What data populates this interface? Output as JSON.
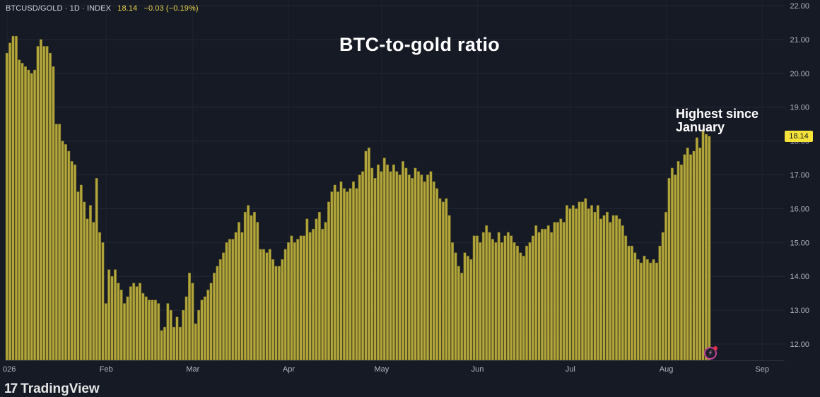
{
  "header": {
    "symbol": "BTCUSD/GOLD · 1D · INDEX",
    "last": "18.14",
    "change": "−0.03 (−0.19%)"
  },
  "price_badge": "18.14",
  "branding": {
    "logo_mark": "17",
    "logo_text": "TradingView"
  },
  "icons": {
    "logo": "tradingview-logo-icon",
    "lightning": "lightning-icon"
  },
  "colors": {
    "background": "#161a25",
    "bar_fill": "#b3a73b",
    "bar_edge": "#6f6724",
    "badge": "#f5e33a",
    "title": "#ffffff"
  },
  "chart_data": {
    "type": "bar",
    "title": "BTC-to-gold ratio",
    "annotation": "Highest since January",
    "ylim": [
      11.5,
      22.25
    ],
    "y_ticks": [
      "22.00",
      "21.00",
      "20.00",
      "19.00",
      "18.00",
      "17.00",
      "16.00",
      "15.00",
      "14.00",
      "13.00",
      "12.00"
    ],
    "x_tick_labels": [
      {
        "label": "026",
        "index": 0
      },
      {
        "label": "Feb",
        "index": 32
      },
      {
        "label": "Mar",
        "index": 60
      },
      {
        "label": "Apr",
        "index": 91
      },
      {
        "label": "May",
        "index": 121
      },
      {
        "label": "Jun",
        "index": 152
      },
      {
        "label": "Jul",
        "index": 182
      },
      {
        "label": "Aug",
        "index": 213
      },
      {
        "label": "Sep",
        "index": 244
      }
    ],
    "grid": true,
    "values": [
      20.6,
      20.9,
      21.1,
      21.1,
      20.4,
      20.3,
      20.2,
      20.1,
      20.0,
      20.1,
      20.8,
      21.0,
      20.8,
      20.8,
      20.6,
      20.2,
      18.5,
      18.5,
      18.0,
      17.9,
      17.7,
      17.4,
      17.3,
      16.5,
      16.7,
      16.2,
      15.7,
      16.1,
      15.6,
      16.9,
      15.3,
      15.0,
      13.2,
      14.2,
      14.0,
      14.2,
      13.8,
      13.6,
      13.2,
      13.4,
      13.7,
      13.8,
      13.7,
      13.8,
      13.5,
      13.4,
      13.3,
      13.3,
      13.3,
      13.2,
      12.4,
      12.5,
      13.2,
      13.0,
      12.5,
      12.8,
      12.5,
      13.0,
      13.4,
      14.1,
      13.8,
      12.6,
      13.0,
      13.3,
      13.4,
      13.6,
      13.8,
      14.1,
      14.3,
      14.5,
      14.7,
      15.0,
      15.1,
      15.1,
      15.3,
      15.6,
      15.3,
      15.9,
      16.1,
      15.8,
      15.9,
      15.6,
      14.8,
      14.8,
      14.7,
      14.8,
      14.5,
      14.3,
      14.3,
      14.5,
      14.8,
      15.0,
      15.2,
      15.0,
      15.1,
      15.2,
      15.2,
      15.7,
      15.3,
      15.4,
      15.7,
      15.9,
      15.4,
      15.6,
      16.2,
      16.5,
      16.7,
      16.5,
      16.8,
      16.6,
      16.5,
      16.6,
      16.8,
      16.6,
      17.0,
      17.1,
      17.7,
      17.8,
      17.2,
      16.9,
      17.3,
      17.1,
      17.5,
      17.3,
      17.1,
      17.3,
      17.1,
      17.0,
      17.4,
      17.2,
      17.0,
      16.9,
      17.2,
      17.1,
      17.0,
      16.8,
      17.0,
      17.1,
      16.8,
      16.6,
      16.3,
      16.2,
      16.3,
      15.8,
      15.0,
      14.7,
      14.3,
      14.1,
      14.7,
      14.6,
      14.5,
      15.2,
      15.2,
      15.0,
      15.3,
      15.5,
      15.3,
      15.1,
      15.0,
      15.3,
      15.0,
      15.2,
      15.3,
      15.2,
      15.0,
      14.9,
      14.7,
      14.6,
      14.9,
      15.0,
      15.2,
      15.5,
      15.3,
      15.4,
      15.4,
      15.5,
      15.3,
      15.6,
      15.6,
      15.7,
      15.6,
      16.1,
      16.0,
      16.1,
      16.0,
      16.2,
      16.2,
      16.3,
      16.0,
      16.1,
      15.9,
      16.1,
      15.7,
      15.8,
      15.9,
      15.6,
      15.8,
      15.8,
      15.7,
      15.5,
      15.2,
      14.9,
      14.9,
      14.7,
      14.5,
      14.4,
      14.6,
      14.5,
      14.4,
      14.5,
      14.4,
      14.9,
      15.3,
      15.9,
      16.9,
      17.2,
      17.0,
      17.4,
      17.3,
      17.6,
      17.8,
      17.6,
      17.7,
      18.1,
      17.8,
      18.3,
      18.2,
      18.14
    ]
  }
}
